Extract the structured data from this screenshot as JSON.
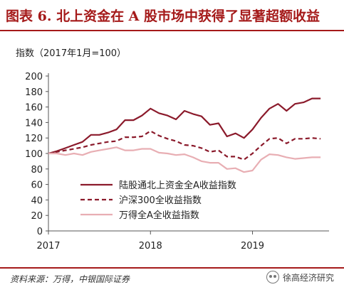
{
  "header": {
    "figure_title": "图表 6. 北上资金在 A 股市场中获得了显著超额收益"
  },
  "chart_data": {
    "type": "line",
    "title": "",
    "ylabel": "指数（2017年1月=100）",
    "xlabel": "",
    "ylim": [
      0,
      200
    ],
    "yticks": [
      0,
      20,
      40,
      60,
      80,
      100,
      120,
      140,
      160,
      180,
      200
    ],
    "xticks": [
      "2017",
      "2018",
      "2019"
    ],
    "xlim": [
      0,
      33
    ],
    "grid": false,
    "legend_position": "bottom-center",
    "x": [
      0,
      1,
      2,
      3,
      4,
      5,
      6,
      7,
      8,
      9,
      10,
      11,
      12,
      13,
      14,
      15,
      16,
      17,
      18,
      19,
      20,
      21,
      22,
      23,
      24,
      25,
      26,
      27,
      28,
      29,
      30,
      31,
      32
    ],
    "series": [
      {
        "name": "陆股通北上资金全A收益指数",
        "style": "solid",
        "color": "#8b1a2b",
        "values": [
          100,
          103,
          107,
          111,
          115,
          124,
          124,
          127,
          131,
          143,
          143,
          149,
          158,
          152,
          149,
          144,
          155,
          151,
          148,
          137,
          139,
          122,
          126,
          120,
          131,
          146,
          158,
          164,
          155,
          164,
          166,
          171,
          171
        ]
      },
      {
        "name": "沪深300全收益指数",
        "style": "dashed",
        "color": "#8b1a2b",
        "values": [
          100,
          102,
          104,
          106,
          108,
          111,
          113,
          115,
          116,
          121,
          121,
          122,
          129,
          123,
          119,
          116,
          111,
          110,
          107,
          102,
          104,
          96,
          96,
          92,
          100,
          110,
          119,
          120,
          113,
          119,
          119,
          120,
          119
        ]
      },
      {
        "name": "万得全A全收益指数",
        "style": "solid",
        "color": "#e8aeb3",
        "values": [
          100,
          100,
          98,
          100,
          98,
          102,
          104,
          106,
          108,
          104,
          104,
          106,
          106,
          101,
          100,
          98,
          99,
          95,
          90,
          88,
          88,
          80,
          81,
          76,
          78,
          92,
          99,
          98,
          95,
          93,
          94,
          95,
          95
        ]
      }
    ]
  },
  "footer": {
    "source": "资料来源：万得，中银国际证券",
    "watermark": "徐高经济研究"
  },
  "colors": {
    "accent": "#a51a1a"
  }
}
